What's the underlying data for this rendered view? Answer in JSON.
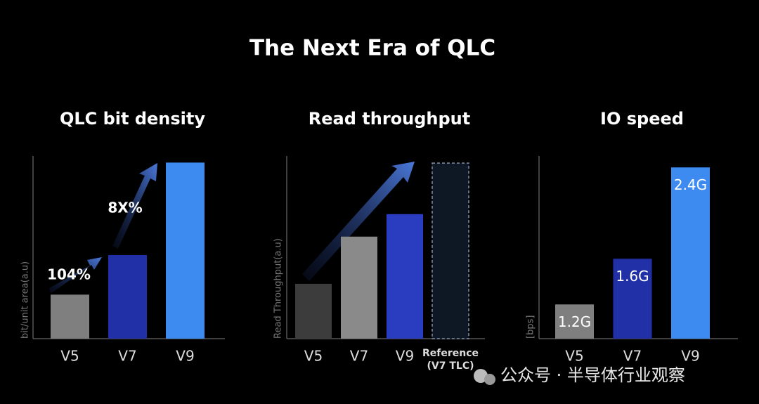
{
  "title": "The Next Era of QLC",
  "chart_data": [
    {
      "type": "bar",
      "title": "QLC bit density",
      "y_label": "bit/unit area(a.u)",
      "categories": [
        "V5",
        "V7",
        "V9"
      ],
      "values": [
        1,
        1.9,
        4.0
      ],
      "colors": [
        "#7f7f7f",
        "#2230a8",
        "#3d8bf0"
      ],
      "ylim": [
        0,
        4.15
      ],
      "annotations": [
        "104%",
        "8X%"
      ]
    },
    {
      "type": "bar",
      "title": "Read throughput",
      "y_label": "Read Throughput(a.u)",
      "categories": [
        "V5",
        "V7",
        "V9",
        [
          "Reference",
          "(V7 TLC)"
        ]
      ],
      "values": [
        1,
        1.86,
        2.27,
        3.2
      ],
      "colors": [
        "#3c3c3c",
        "#8a8a8a",
        "#2a3cc0",
        "#0d1824"
      ],
      "dashed": [
        false,
        false,
        false,
        true
      ],
      "ylim": [
        0,
        3.33
      ]
    },
    {
      "type": "bar",
      "title": "IO speed",
      "y_label": "[bps]",
      "categories": [
        "V5",
        "V7",
        "V9"
      ],
      "values": [
        1.2,
        1.6,
        2.4
      ],
      "value_labels": [
        "1.2G",
        "1.6G",
        "2.4G"
      ],
      "colors": [
        "#7f7f7f",
        "#2230a8",
        "#3d8bf0"
      ],
      "ylim": [
        0.9,
        2.5
      ]
    }
  ],
  "watermark": "公众号 · 半导体行业观察"
}
